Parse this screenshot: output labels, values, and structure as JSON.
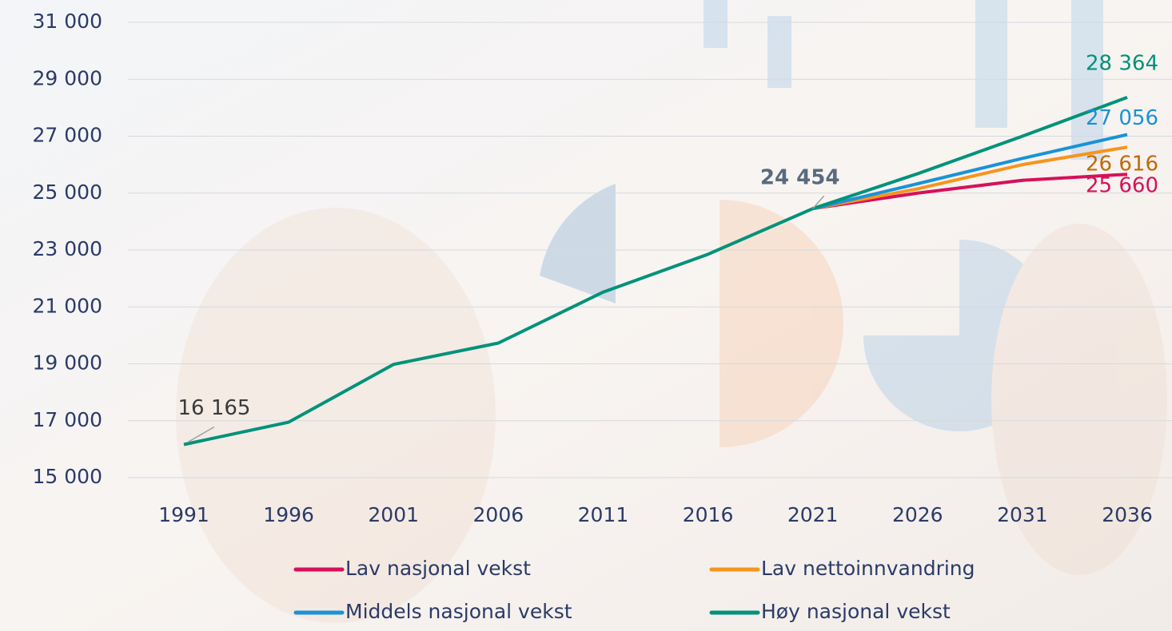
{
  "chart_data": {
    "type": "line",
    "categories": [
      "1991",
      "1996",
      "2001",
      "2006",
      "2011",
      "2016",
      "2021",
      "2026",
      "2031",
      "2036"
    ],
    "ylim": [
      15000,
      31000
    ],
    "yticks": [
      {
        "value": 15000,
        "label": "15 000"
      },
      {
        "value": 17000,
        "label": "17 000"
      },
      {
        "value": 19000,
        "label": "19 000"
      },
      {
        "value": 21000,
        "label": "21 000"
      },
      {
        "value": 23000,
        "label": "23 000"
      },
      {
        "value": 25000,
        "label": "25 000"
      },
      {
        "value": 27000,
        "label": "27 000"
      },
      {
        "value": 29000,
        "label": "29 000"
      },
      {
        "value": 31000,
        "label": "31 000"
      }
    ],
    "grid": true,
    "legend": "bottom",
    "series": [
      {
        "name": "Lav nasjonal vekst",
        "color": "#d6105a",
        "label_color": "#d6105a",
        "values": [
          null,
          null,
          null,
          null,
          null,
          null,
          24454,
          25000,
          25450,
          25660
        ],
        "value_labels": [
          null,
          null,
          null,
          null,
          null,
          null,
          null,
          null,
          null,
          "25 660"
        ]
      },
      {
        "name": "Lav nettoinnvandring",
        "color": "#f7941d",
        "label_color": "#c06a08",
        "values": [
          null,
          null,
          null,
          null,
          null,
          null,
          24454,
          25150,
          26000,
          26616
        ],
        "value_labels": [
          null,
          null,
          null,
          null,
          null,
          null,
          null,
          null,
          null,
          "26 616"
        ]
      },
      {
        "name": "Middels nasjonal vekst",
        "color": "#1a92d8",
        "label_color": "#1a92d8",
        "values": [
          null,
          null,
          null,
          null,
          null,
          null,
          24454,
          25330,
          26220,
          27056
        ],
        "value_labels": [
          null,
          null,
          null,
          null,
          null,
          null,
          null,
          null,
          null,
          "27 056"
        ]
      },
      {
        "name": "Høy nasjonal vekst",
        "color": "#00927a",
        "label_color": "#00927a",
        "values": [
          16165,
          16950,
          18980,
          19730,
          21520,
          22850,
          24454,
          25680,
          27000,
          28364
        ],
        "value_labels": [
          "16 165",
          null,
          null,
          null,
          null,
          null,
          "24 454",
          null,
          null,
          "28 364"
        ]
      }
    ]
  }
}
